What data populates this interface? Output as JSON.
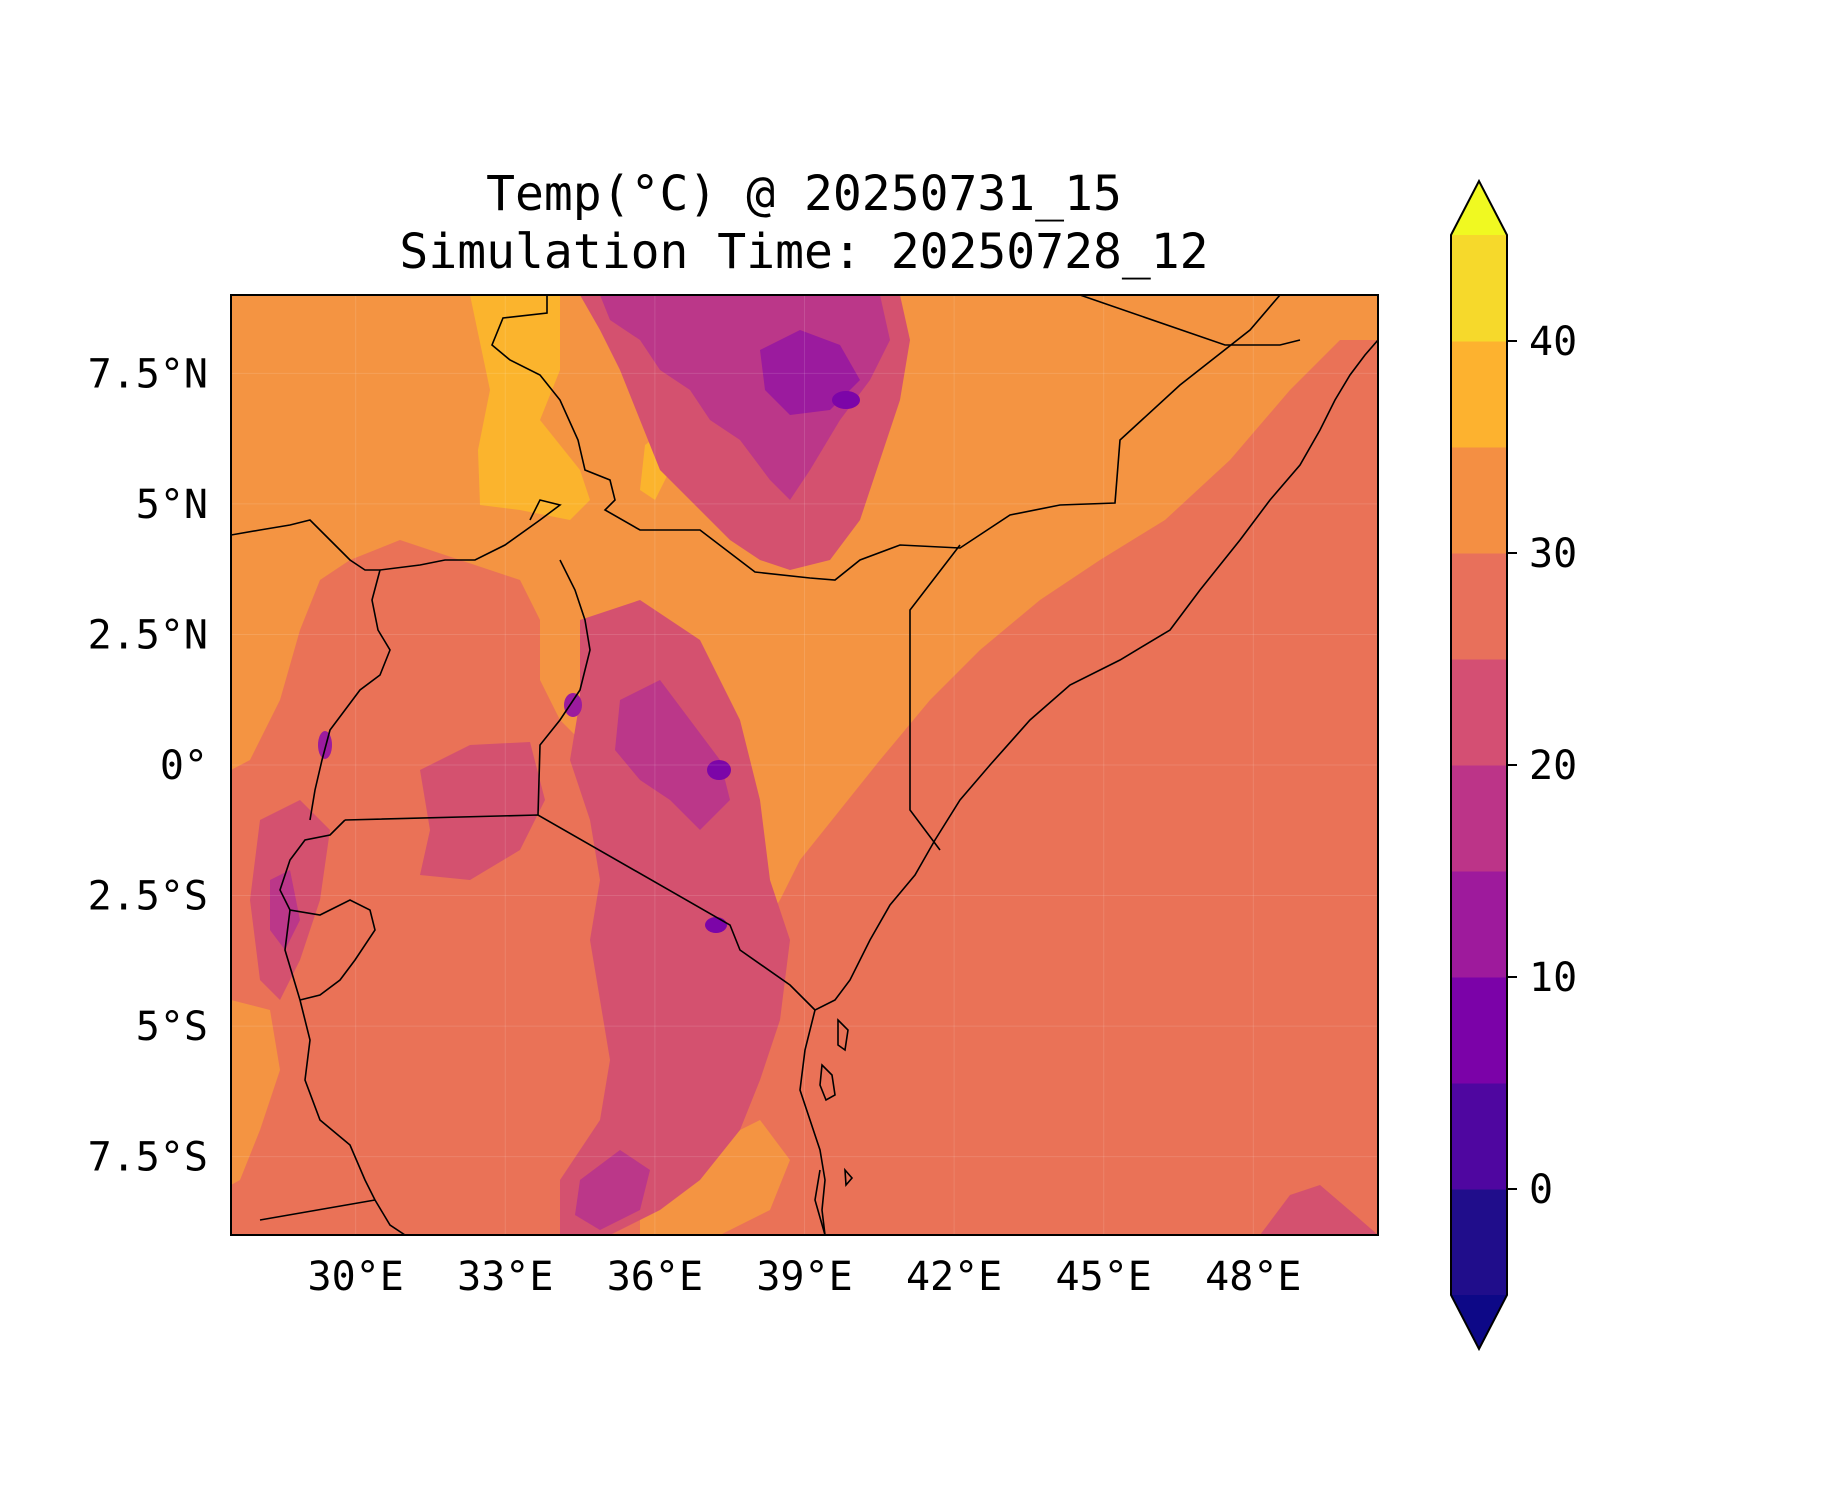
{
  "map": {
    "title_line1": "Temp(°C) @ 20250731_15",
    "title_line2": "Simulation Time: 20250728_12",
    "lon_range": [
      27.5,
      50.5
    ],
    "lat_range": [
      -9,
      9
    ],
    "x_ticks": [
      {
        "lon": 30,
        "label": "30°E"
      },
      {
        "lon": 33,
        "label": "33°E"
      },
      {
        "lon": 36,
        "label": "36°E"
      },
      {
        "lon": 39,
        "label": "39°E"
      },
      {
        "lon": 42,
        "label": "42°E"
      },
      {
        "lon": 45,
        "label": "45°E"
      },
      {
        "lon": 48,
        "label": "48°E"
      }
    ],
    "y_ticks": [
      {
        "lat": 7.5,
        "label": "7.5°N"
      },
      {
        "lat": 5,
        "label": "5°N"
      },
      {
        "lat": 2.5,
        "label": "2.5°N"
      },
      {
        "lat": 0,
        "label": "0°"
      },
      {
        "lat": -2.5,
        "label": "2.5°S"
      },
      {
        "lat": -5,
        "label": "5°S"
      },
      {
        "lat": -7.5,
        "label": "7.5°S"
      }
    ]
  },
  "colorbar": {
    "ticks": [
      {
        "value": 0,
        "label": "0"
      },
      {
        "value": 10,
        "label": "10"
      },
      {
        "value": 20,
        "label": "20"
      },
      {
        "value": 30,
        "label": "30"
      },
      {
        "value": 40,
        "label": "40"
      }
    ],
    "levels": [
      -5,
      0,
      5,
      10,
      15,
      20,
      25,
      30,
      35,
      40,
      45
    ],
    "colors": [
      "#200d8b",
      "#4f06a0",
      "#7b02a8",
      "#9e1a9c",
      "#bc3488",
      "#d44f73",
      "#e8705b",
      "#f48f43",
      "#fdb22f",
      "#f6d92b"
    ],
    "under_color": "#0d0887",
    "over_color": "#f0f921"
  },
  "colors": {
    "ocean": "#ea7257",
    "land_warm": "#f49442",
    "land_hot": "#fbb42d",
    "highland_mild": "#d4516f",
    "highland_cool": "#bb3789",
    "highland_cold": "#9b1b9e",
    "peak": "#7c05a8",
    "border": "#000000"
  }
}
